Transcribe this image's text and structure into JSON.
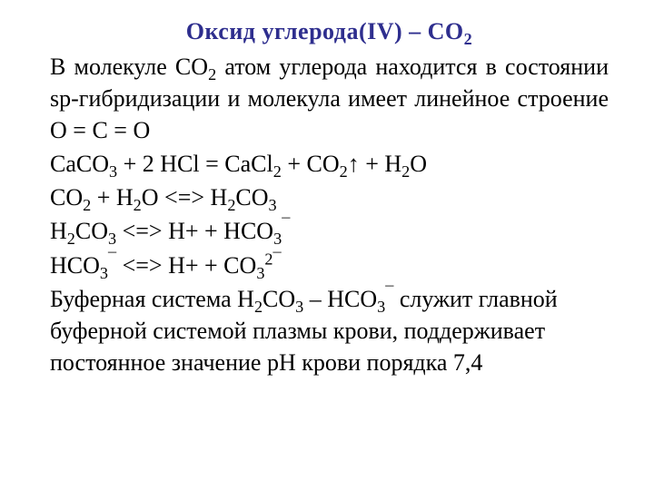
{
  "title_prefix": "Оксид углерода(IV)",
  "title_sep": " – ",
  "title_formula_base": "CO",
  "title_formula_sub": "2",
  "colors": {
    "title_color": "#2e2e8e",
    "text_color": "#000000",
    "background": "#ffffff"
  },
  "typography": {
    "font_family": "Times New Roman",
    "title_fontsize": 26,
    "body_fontsize": 26,
    "title_weight": "bold"
  },
  "p1": {
    "t1": "В молекуле CO",
    "s1": "2",
    "t2": " атом углерода находится в состоянии sp-гибридизации и молекула имеет линейное строение  O = C = O"
  },
  "eq1": {
    "t1": "CaCO",
    "s1": "3",
    "t2": " + 2 HCl = CaCl",
    "s2": "2",
    "t3": " + CO",
    "s3": "2",
    "t4": "↑ + H",
    "s4": "2",
    "t5": "O"
  },
  "eq2": {
    "t1": "CO",
    "s1": "2",
    "t2": " + H",
    "s2": "2",
    "t3": "O <=> H",
    "s3": "2",
    "t4": "CO",
    "s4": "3"
  },
  "eq3": {
    "t1": "H",
    "s1": "2",
    "t2": "CO",
    "s2": "3",
    "t3": " <=> H+ + HCO",
    "s3": "3",
    "sup1": "¯"
  },
  "eq4": {
    "t1": "HCO",
    "s1": "3",
    "sup1": "¯",
    "t2": " <=> H+ + CO",
    "s2": "3",
    "sup2": "2",
    "sup3": "¯"
  },
  "p2": {
    "t1": "Буферная система H",
    "s1": "2",
    "t2": "CO",
    "s2": "3",
    "t3": " – HCO",
    "s3": "3",
    "sup1": "¯",
    "t4": " служит главной буферной системой плазмы крови, поддерживает постоянное значение pH крови порядка 7,4"
  }
}
